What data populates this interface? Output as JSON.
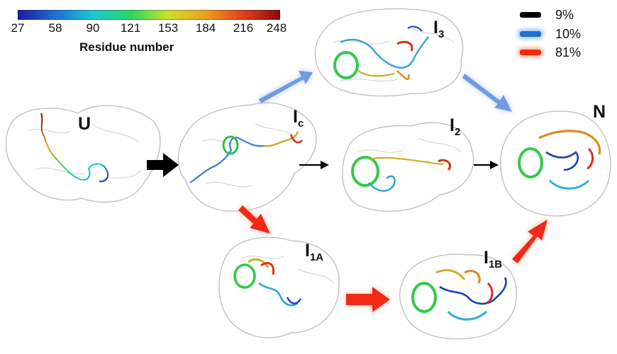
{
  "colorbar": {
    "title": "Residue number",
    "ticks": [
      "27",
      "58",
      "90",
      "121",
      "153",
      "184",
      "216",
      "248"
    ],
    "stops": [
      "#1a1aa6",
      "#1e6fd6",
      "#19c9d6",
      "#28d65e",
      "#c9e02a",
      "#f0a020",
      "#e0401a",
      "#8a0a0a"
    ]
  },
  "states": {
    "U": {
      "main": "U",
      "sub": ""
    },
    "Ic": {
      "main": "I",
      "sub": "c"
    },
    "I2": {
      "main": "I",
      "sub": "2"
    },
    "I3": {
      "main": "I",
      "sub": "3"
    },
    "N": {
      "main": "N",
      "sub": ""
    },
    "I1A": {
      "main": "I",
      "sub": "1A"
    },
    "I1B": {
      "main": "I",
      "sub": "1B"
    }
  },
  "legend": [
    {
      "pathway": "black",
      "color": "#000000",
      "percent": "9%"
    },
    {
      "pathway": "blue",
      "color": "#1e6fd0",
      "percent": "10%"
    },
    {
      "pathway": "red",
      "color": "#f02a14",
      "percent": "81%"
    }
  ],
  "colors": {
    "surface_outline": "#b8b8b8",
    "black_arrow": "#000000",
    "blue_arrow": "#6f9be0",
    "red_arrow": "#f02a14"
  }
}
